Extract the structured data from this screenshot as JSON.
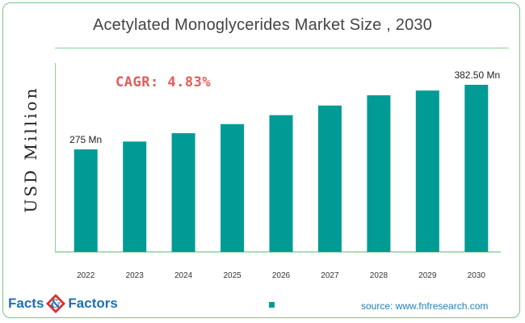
{
  "title": "Acetylated Monoglycerides Market Size , 2030",
  "cagr_label": "CAGR: 4.83%",
  "source": "source: www.fnfresearch.com",
  "logo": {
    "word1": "Facts",
    "word2": "Factors"
  },
  "colors": {
    "bar": "#009b94",
    "cagr": "#e85a5a",
    "accent_line": "#8fd19a",
    "logo_blue": "#1f6fb3",
    "logo_red": "#d6322e"
  },
  "chart_data": {
    "type": "bar",
    "ylabel": "USD Million",
    "xlabel": "",
    "categories": [
      "2022",
      "2023",
      "2024",
      "2025",
      "2026",
      "2027",
      "2028",
      "2029",
      "2030"
    ],
    "values": [
      275,
      288,
      302,
      317,
      332,
      348,
      365,
      373,
      382.5
    ],
    "data_labels": [
      "275 Mn",
      "",
      "",
      "",
      "",
      "",
      "",
      "",
      "382.50 Mn"
    ],
    "ylim": [
      0,
      400
    ],
    "grid": false,
    "legend": "bottom-center"
  }
}
